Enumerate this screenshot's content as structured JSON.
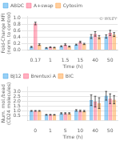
{
  "chart_data": [
    {
      "type": "bar",
      "annotation": "© WILEY",
      "xlabel": "Time (h)",
      "ylabel": "Fold-Change MFI\n(norm. to control)",
      "categories": [
        "0.17",
        "1",
        "1.5",
        "15",
        "40",
        "50"
      ],
      "series": [
        {
          "name": "ABDC",
          "values": [
            0.1,
            0.07,
            0.12,
            0.17,
            0.42,
            0.42
          ],
          "errors": [
            0.015,
            0.01,
            0.015,
            0.015,
            0.06,
            0.05
          ]
        },
        {
          "name": "A+swap",
          "values": [
            0.82,
            0.09,
            0.17,
            0.25,
            0.5,
            0.53
          ],
          "errors": [
            0.04,
            0.015,
            0.025,
            0.025,
            0.07,
            0.08
          ]
        },
        {
          "name": "Cytosim",
          "values": [
            0.17,
            0.08,
            0.11,
            0.19,
            0.4,
            0.48
          ],
          "errors": [
            0.025,
            0.01,
            0.015,
            0.02,
            0.05,
            0.06
          ]
        }
      ],
      "ylim": [
        0,
        1.05
      ],
      "yticks": [
        {
          "value": 0,
          "label": "0.0"
        },
        0.2,
        0.4,
        0.6,
        0.8,
        {
          "value": 1,
          "label": "1.0"
        }
      ],
      "grid": true,
      "legend": "upper left"
    },
    {
      "type": "bar",
      "xlabel": "Time (h)",
      "ylabel": "Num. mol./bead\n(CD24 molecules)",
      "categories": [
        "0",
        "1",
        "5",
        "10",
        "40",
        "50"
      ],
      "series": [
        {
          "name": "BJ12",
          "values": [
            1.0,
            0.6,
            0.75,
            1.05,
            2.1,
            2.55
          ],
          "errors": [
            0.04,
            0.04,
            0.06,
            0.08,
            0.55,
            0.45
          ]
        },
        {
          "name": "Brentuxi A",
          "values": [
            1.0,
            0.6,
            0.75,
            1.0,
            1.95,
            2.25
          ],
          "errors": [
            0.04,
            0.04,
            0.06,
            0.08,
            0.55,
            0.5
          ]
        },
        {
          "name": "BIC",
          "values": [
            1.0,
            0.6,
            0.75,
            0.98,
            1.8,
            2.15
          ],
          "errors": [
            0.04,
            0.03,
            0.06,
            0.07,
            0.55,
            0.42
          ]
        }
      ],
      "ylim": [
        0,
        3.5
      ],
      "yticks": [
        0.5,
        {
          "value": 1,
          "label": "1.0"
        },
        1.5,
        {
          "value": 2,
          "label": "2.0"
        },
        2.5,
        {
          "value": 3,
          "label": "3.0"
        }
      ],
      "grid": true,
      "legend": "upper left"
    }
  ]
}
